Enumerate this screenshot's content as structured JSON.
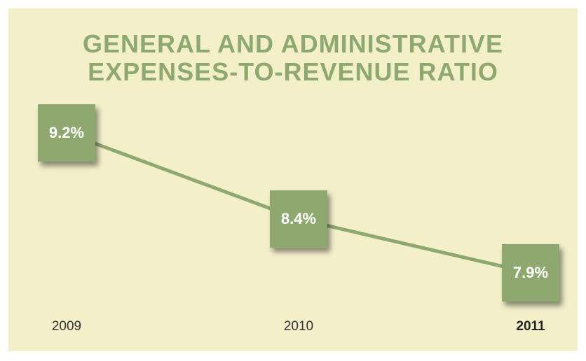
{
  "chart_data": {
    "type": "line",
    "title": [
      "GENERAL AND ADMINISTRATIVE",
      "EXPENSES-TO-REVENUE RATIO"
    ],
    "categories": [
      "2009",
      "2010",
      "2011"
    ],
    "values": [
      9.2,
      8.4,
      7.9
    ],
    "value_labels": [
      "9.2%",
      "8.4%",
      "7.9%"
    ],
    "color": "#8fa870"
  }
}
